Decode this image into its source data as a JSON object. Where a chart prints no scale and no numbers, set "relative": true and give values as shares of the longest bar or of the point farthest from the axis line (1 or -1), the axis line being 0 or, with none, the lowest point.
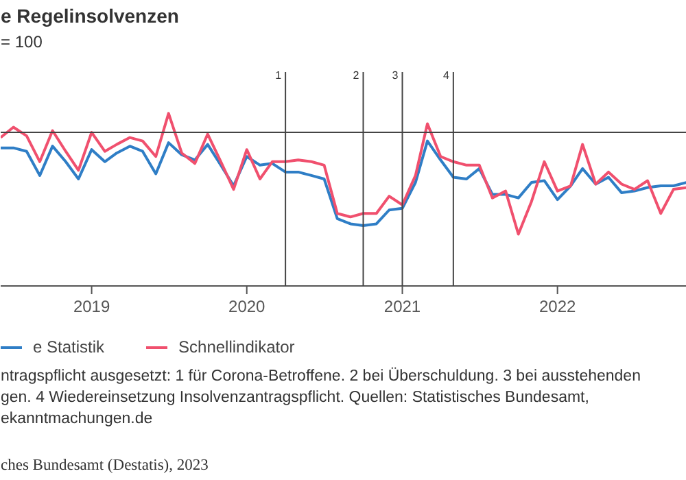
{
  "chart_data": {
    "type": "line",
    "title": "e Regelinsolvenzen",
    "subtitle": "= 100",
    "relative": true,
    "x": [
      "2018-06",
      "2018-07",
      "2018-08",
      "2018-09",
      "2018-10",
      "2018-11",
      "2018-12",
      "2019-01",
      "2019-02",
      "2019-03",
      "2019-04",
      "2019-05",
      "2019-06",
      "2019-07",
      "2019-08",
      "2019-09",
      "2019-10",
      "2019-11",
      "2019-12",
      "2020-01",
      "2020-02",
      "2020-03",
      "2020-04",
      "2020-05",
      "2020-06",
      "2020-07",
      "2020-08",
      "2020-09",
      "2020-10",
      "2020-11",
      "2020-12",
      "2021-01",
      "2021-02",
      "2021-03",
      "2021-04",
      "2021-05",
      "2021-06",
      "2021-07",
      "2021-08",
      "2021-09",
      "2021-10",
      "2021-11",
      "2021-12",
      "2022-01",
      "2022-02",
      "2022-03",
      "2022-04",
      "2022-05",
      "2022-06",
      "2022-07",
      "2022-08",
      "2022-09",
      "2022-10",
      "2022-11"
    ],
    "series": [
      {
        "name": "e Statistik",
        "color": "#2f7ec6",
        "values": [
          0.8,
          0.8,
          0.78,
          0.64,
          0.81,
          0.72,
          0.62,
          0.79,
          0.72,
          0.77,
          0.81,
          0.78,
          0.65,
          0.83,
          0.76,
          0.73,
          0.82,
          0.7,
          0.58,
          0.75,
          0.7,
          0.71,
          0.66,
          0.66,
          0.64,
          0.62,
          0.39,
          0.36,
          0.35,
          0.36,
          0.44,
          0.45,
          0.6,
          0.84,
          0.73,
          0.63,
          0.62,
          0.68,
          0.53,
          0.53,
          0.51,
          0.6,
          0.61,
          0.5,
          0.58,
          0.68,
          0.59,
          0.63,
          0.54,
          0.55,
          0.57,
          0.58,
          0.58,
          0.6
        ]
      },
      {
        "name": "Schnellindikator",
        "color": "#f0506e",
        "values": [
          0.86,
          0.92,
          0.87,
          0.72,
          0.9,
          0.78,
          0.67,
          0.89,
          0.78,
          0.82,
          0.86,
          0.84,
          0.75,
          1,
          0.77,
          0.71,
          0.88,
          0.72,
          0.56,
          0.79,
          0.62,
          0.72,
          0.72,
          0.73,
          0.72,
          0.7,
          0.42,
          0.4,
          0.42,
          0.42,
          0.52,
          0.47,
          0.64,
          0.94,
          0.75,
          0.72,
          0.7,
          0.7,
          0.51,
          0.55,
          0.3,
          0.49,
          0.72,
          0.55,
          0.58,
          0.82,
          0.59,
          0.66,
          0.59,
          0.56,
          0.61,
          0.42,
          0.56,
          0.57
        ]
      }
    ],
    "xlim": [
      "2018-06",
      "2022-11"
    ],
    "xticks": [
      "2019",
      "2020",
      "2021",
      "2022"
    ],
    "ref_lines": [
      {
        "axis": "y",
        "value": 0.89,
        "label": null
      },
      {
        "axis": "x",
        "value": "2020-04",
        "label": "1"
      },
      {
        "axis": "x",
        "value": "2020-10",
        "label": "2"
      },
      {
        "axis": "x",
        "value": "2021-01",
        "label": "3"
      },
      {
        "axis": "x",
        "value": "2021-05",
        "label": "4"
      }
    ],
    "legend": "bottom",
    "line_style": "solid",
    "marker": "none",
    "grid": false,
    "annotations": [
      "ntragspflicht ausgesetzt: 1 für Corona-Betroffene. 2 bei Überschuldung. 3 bei ausstehenden\ngen. 4 Wiedereinsetzung Insolvenzantragspflicht. Quellen: Statistisches Bundesamt,\nekanntmachungen.de",
      "ches Bundesamt (Destatis), 2023"
    ]
  }
}
